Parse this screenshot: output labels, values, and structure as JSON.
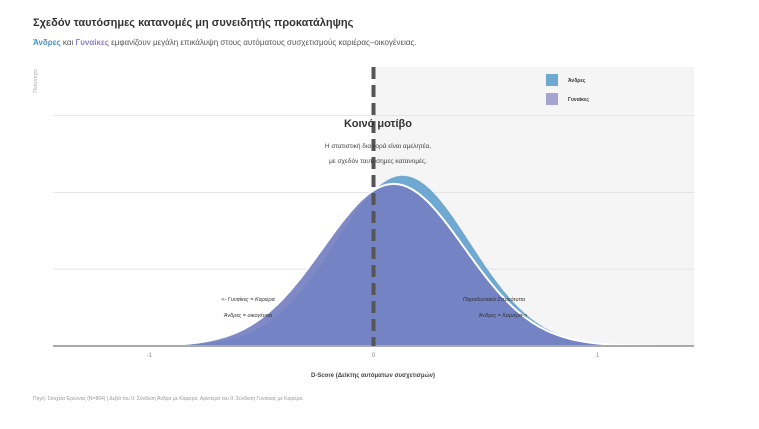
{
  "title": "Σχεδόν ταυτόσημες κατανομές μη συνειδητής προκατάληψης",
  "subtitle": {
    "men": "Άνδρες",
    "and": " και ",
    "women": "Γυναίκες",
    "rest": " εμφανίζουν μεγάλη επικάλυψη στους αυτόματους συσχετισμούς καριέρας–οικογένειας."
  },
  "footer": "Πηγή: Στοιχεία Έρευνας (N=864) | Δεξιά του 0: Σύνδεση Άνδρα με Καριέρα. Αριστερά του 0: Σύνδεση Γυναίκας με Καριέρα.",
  "chart_data": {
    "type": "area",
    "xlabel": "D-Score (Δείκτης αυτόματων συσχετισμών)",
    "ylabel": "Πυκνότητα",
    "xlim": [
      -1.43,
      1.43
    ],
    "ylim": [
      0,
      2.18
    ],
    "xticks": [
      "-1",
      "0",
      "1"
    ],
    "xtick_values": [
      -1,
      0,
      1
    ],
    "grid": "horizontal",
    "legend": "top-right",
    "series": [
      {
        "name": "Άνδρες",
        "color": "#6fa8d0",
        "distribution": "normal",
        "mean": 0.13,
        "sd": 0.3
      },
      {
        "name": "Γυναίκες",
        "color": "#a8a4d0",
        "distribution": "normal",
        "mean": 0.09,
        "sd": 0.315
      }
    ],
    "overlap_color": "#7480c2",
    "reference_line": 0,
    "annotations": {
      "heading": "Κοινό μοτίβο",
      "line1": "Η στατιστική διαφορά είναι αμελητέα,",
      "line2": "με σχεδόν ταυτόσημες κατανομές.",
      "left1": "<- Γυναίκες = Καριέρα",
      "left2": "Άνδρες = οικογένεια",
      "right1": "Παραδοσιακό Στερεότυπο",
      "right2": "Άνδρες = Καριέρα->"
    }
  }
}
